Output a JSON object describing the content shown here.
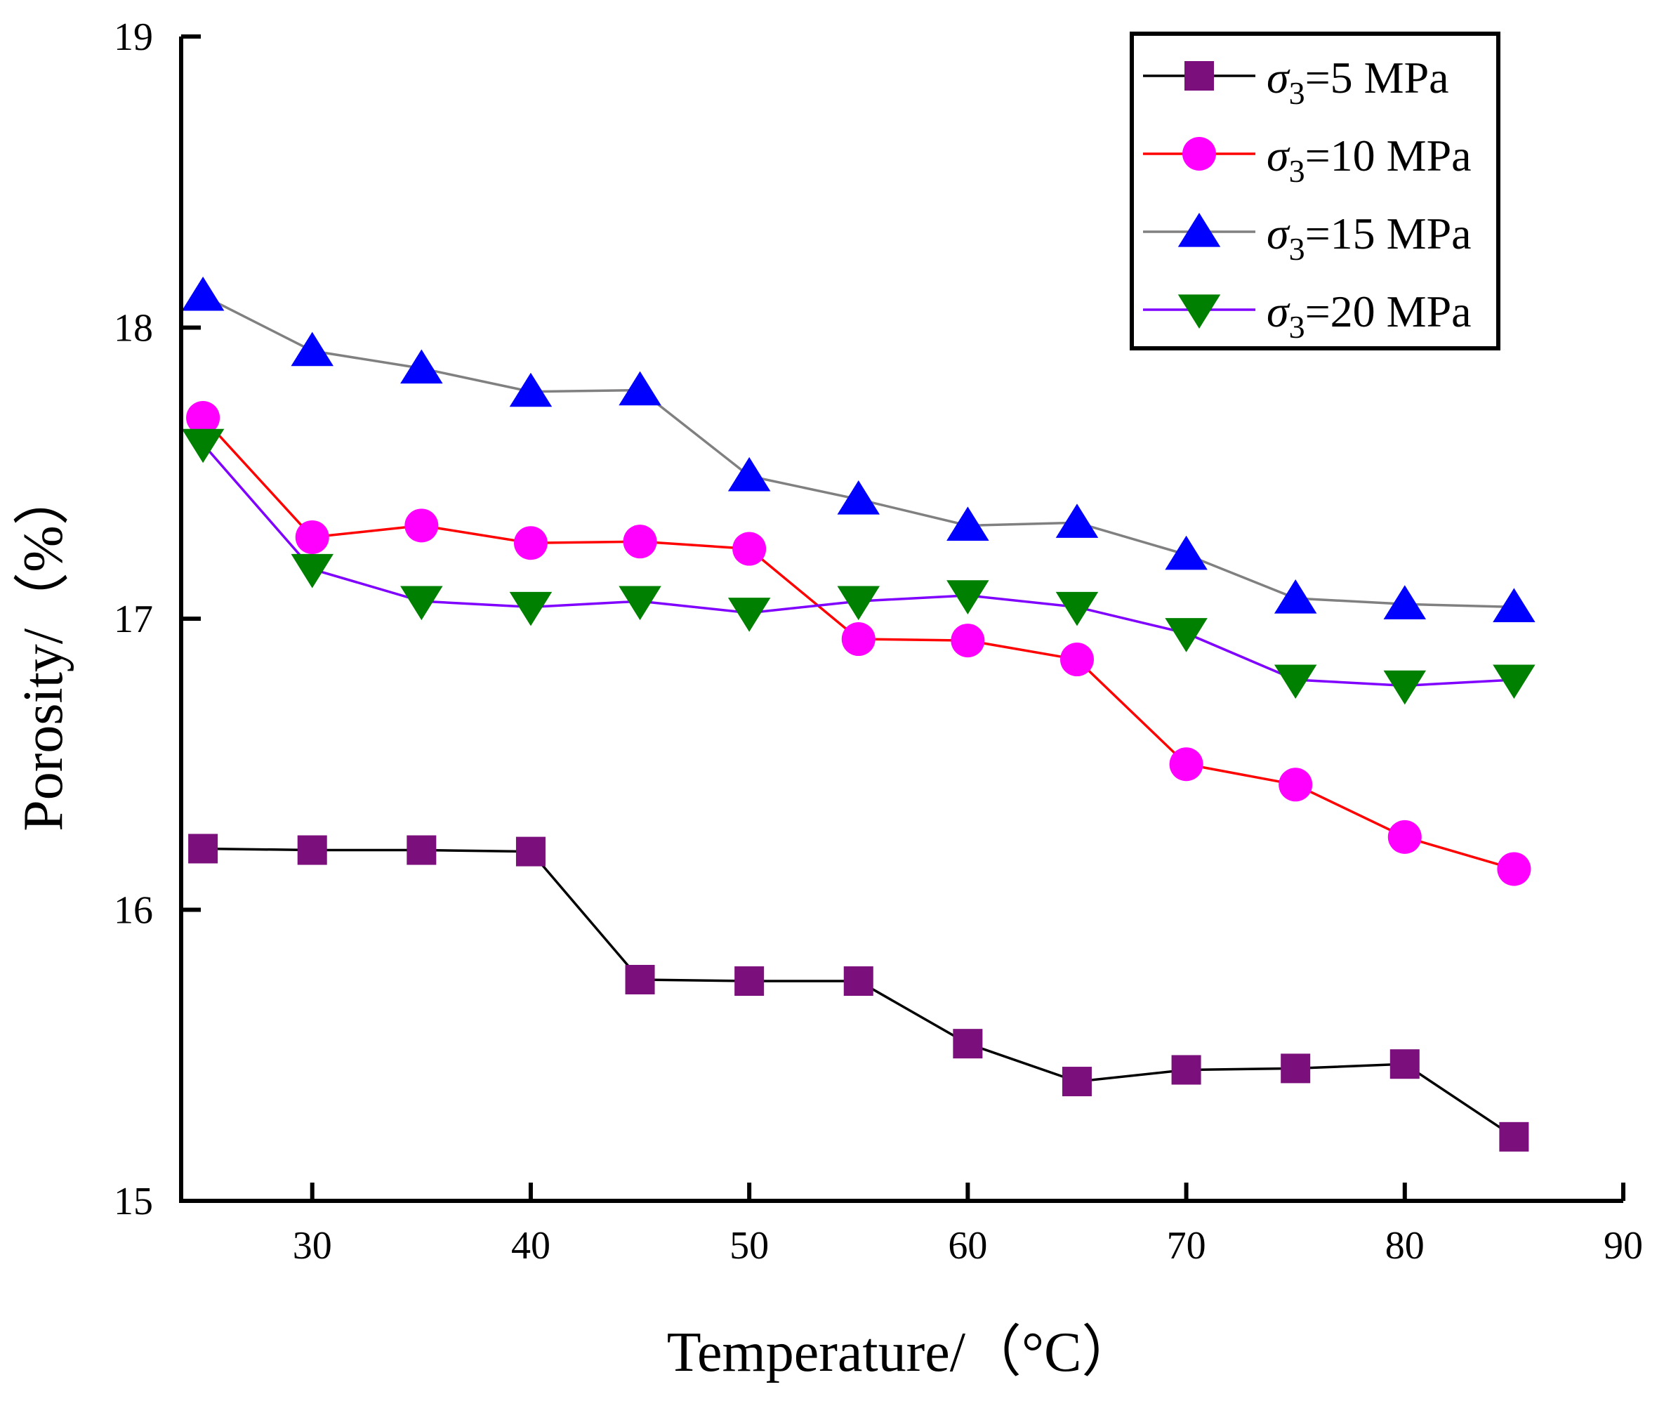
{
  "chart_data": {
    "type": "line",
    "title": "",
    "xlabel": "Temperature/（°C）",
    "ylabel": "Porosity/（%）",
    "xlim": [
      24,
      90
    ],
    "ylim": [
      15,
      19
    ],
    "xticks": [
      30,
      40,
      50,
      60,
      70,
      80,
      90
    ],
    "yticks": [
      15,
      16,
      17,
      18,
      19
    ],
    "x": [
      25,
      30,
      35,
      40,
      45,
      50,
      55,
      60,
      65,
      70,
      75,
      80,
      85
    ],
    "grid": false,
    "legend_position": "top-right",
    "series": [
      {
        "name": "σ3=5 MPa",
        "name_base": "σ",
        "name_sub": "3",
        "name_rest": "=5 MPa",
        "marker": "square",
        "line_color": "#000000",
        "marker_color": "#7b0f7b",
        "values": [
          16.21,
          16.205,
          16.205,
          16.2,
          15.76,
          15.755,
          15.755,
          15.54,
          15.41,
          15.45,
          15.455,
          15.47,
          15.22
        ]
      },
      {
        "name": "σ3=10 MPa",
        "name_base": "σ",
        "name_sub": "3",
        "name_rest": "=10 MPa",
        "marker": "circle",
        "line_color": "#ff0000",
        "marker_color": "#ff00ff",
        "values": [
          17.69,
          17.28,
          17.32,
          17.26,
          17.265,
          17.24,
          16.93,
          16.925,
          16.86,
          16.5,
          16.43,
          16.25,
          16.14
        ]
      },
      {
        "name": "σ3=15 MPa",
        "name_base": "σ",
        "name_sub": "3",
        "name_rest": "=15 MPa",
        "marker": "triangle-up",
        "line_color": "#808080",
        "marker_color": "#0000ff",
        "values": [
          18.11,
          17.92,
          17.86,
          17.78,
          17.785,
          17.49,
          17.41,
          17.32,
          17.33,
          17.22,
          17.07,
          17.05,
          17.04
        ]
      },
      {
        "name": "σ3=20 MPa",
        "name_base": "σ",
        "name_sub": "3",
        "name_rest": "=20 MPa",
        "marker": "triangle-down",
        "line_color": "#8000ff",
        "marker_color": "#008000",
        "values": [
          17.6,
          17.17,
          17.06,
          17.04,
          17.06,
          17.02,
          17.06,
          17.08,
          17.04,
          16.95,
          16.79,
          16.77,
          16.79
        ]
      }
    ]
  }
}
